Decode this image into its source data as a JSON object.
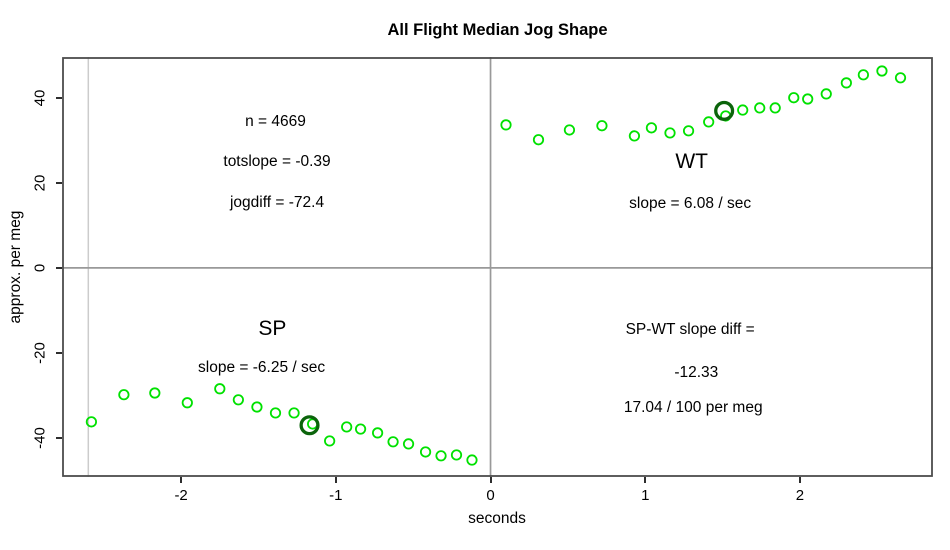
{
  "chart_data": {
    "type": "scatter",
    "title": "All Flight Median Jog Shape",
    "xlabel": "seconds",
    "ylabel": "approx. per meg",
    "xlim": [
      -2.77,
      2.86
    ],
    "ylim": [
      -49.3,
      49.7
    ],
    "x_ticks": [
      -2,
      -1,
      0,
      1,
      2
    ],
    "y_ticks": [
      -40,
      -20,
      0,
      20,
      40
    ],
    "grid": false,
    "legend": "none",
    "point_color": "#00E100",
    "highlight_color": "#0B640B",
    "ref_line_color": "#999999",
    "marker_line_color": "#CCCCCC",
    "frame_color": "#4D4D4D",
    "reference_lines": {
      "h_zero": 0,
      "v_zero": 0,
      "marker_v": -2.6
    },
    "series": [
      {
        "name": "SP",
        "x": [
          -2.58,
          -2.37,
          -2.17,
          -1.96,
          -1.75,
          -1.63,
          -1.51,
          -1.39,
          -1.27,
          -1.15,
          -1.04,
          -0.93,
          -0.84,
          -0.73,
          -0.63,
          -0.53,
          -0.42,
          -0.32,
          -0.22,
          -0.12
        ],
        "y": [
          -36.3,
          -29.9,
          -29.5,
          -31.8,
          -28.5,
          -31.1,
          -32.8,
          -34.2,
          -34.2,
          -36.8,
          -40.8,
          -37.5,
          -38.0,
          -38.9,
          -41.0,
          -41.5,
          -43.4,
          -44.3,
          -44.1,
          -45.3
        ]
      },
      {
        "name": "WT",
        "x": [
          0.1,
          0.31,
          0.51,
          0.72,
          0.93,
          1.04,
          1.16,
          1.28,
          1.41,
          1.52,
          1.63,
          1.74,
          1.84,
          1.96,
          2.05,
          2.17,
          2.3,
          2.41,
          2.53,
          2.65
        ],
        "y": [
          33.7,
          30.2,
          32.5,
          33.5,
          31.1,
          33.0,
          31.8,
          32.3,
          34.4,
          35.8,
          37.2,
          37.7,
          37.7,
          40.1,
          39.8,
          41.0,
          43.6,
          45.5,
          46.4,
          44.8
        ]
      }
    ],
    "highlights": [
      {
        "series": "SP",
        "x": -1.17,
        "y": -37.1
      },
      {
        "series": "WT",
        "x": 1.51,
        "y": 37.0
      }
    ],
    "annotations": [
      {
        "key": "n-count",
        "text": "n = 4669",
        "x": -1.39,
        "y": 34.4,
        "size": 15.5,
        "bold": false
      },
      {
        "key": "totslope",
        "text": "totslope = -0.39",
        "x": -1.38,
        "y": 25.0,
        "size": 15.5,
        "bold": false
      },
      {
        "key": "jogdiff",
        "text": "jogdiff = -72.4",
        "x": -1.38,
        "y": 15.3,
        "size": 15.5,
        "bold": false
      },
      {
        "key": "wt-label",
        "text": "WT",
        "x": 1.3,
        "y": 25.0,
        "size": 21,
        "bold": false
      },
      {
        "key": "wt-slope",
        "text": "slope = 6.08 / sec",
        "x": 1.29,
        "y": 15.1,
        "size": 15.5,
        "bold": false
      },
      {
        "key": "sp-label",
        "text": "SP",
        "x": -1.41,
        "y": -14.4,
        "size": 21,
        "bold": false
      },
      {
        "key": "sp-slope",
        "text": "slope = -6.25 / sec",
        "x": -1.48,
        "y": -23.6,
        "size": 15.5,
        "bold": false
      },
      {
        "key": "diff-line1",
        "text": "SP-WT slope diff =",
        "x": 1.29,
        "y": -14.6,
        "size": 15.5,
        "bold": false
      },
      {
        "key": "diff-line2",
        "text": "-12.33",
        "x": 1.33,
        "y": -24.7,
        "size": 15.5,
        "bold": false
      },
      {
        "key": "diff-line3",
        "text": "17.04 / 100 per meg",
        "x": 1.31,
        "y": -33.0,
        "size": 15.5,
        "bold": false
      }
    ]
  }
}
